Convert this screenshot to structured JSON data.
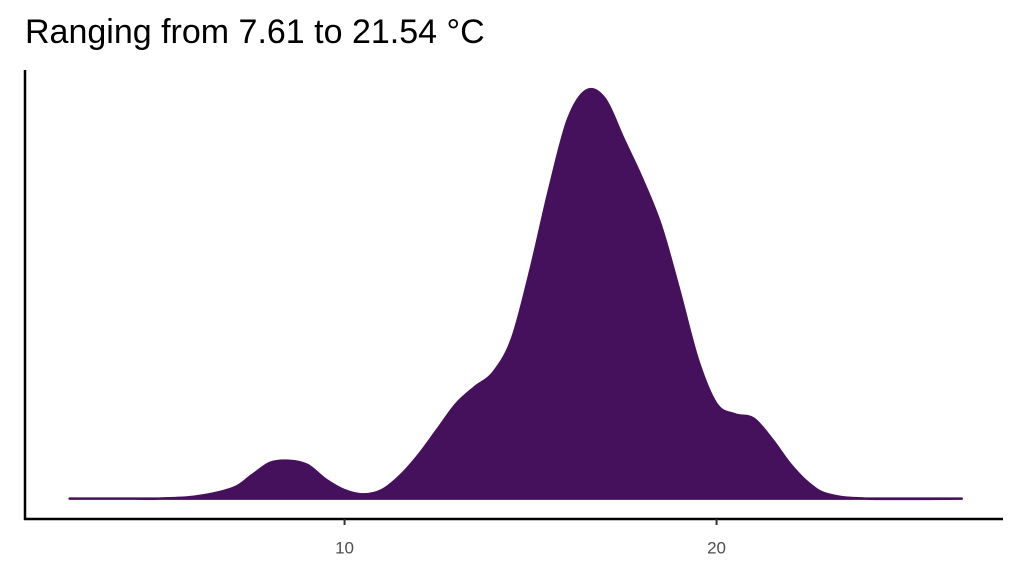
{
  "chart_data": {
    "type": "density",
    "title": "Ranging from 7.61 to 21.54 °C",
    "color": "#45105c",
    "x": [
      2.61,
      4,
      5,
      6,
      7,
      7.5,
      8,
      8.5,
      9,
      9.5,
      10,
      10.5,
      11,
      11.5,
      12,
      12.5,
      13,
      13.5,
      14,
      14.5,
      15,
      15.5,
      16,
      16.5,
      17,
      17.5,
      18,
      18.5,
      19,
      19.5,
      20,
      20.5,
      21,
      21.5,
      22,
      22.5,
      23,
      24,
      26.59
    ],
    "values": [
      0,
      0,
      0,
      0.001,
      0.005,
      0.011,
      0.017,
      0.018,
      0.016,
      0.009,
      0.004,
      0.002,
      0.004,
      0.011,
      0.021,
      0.033,
      0.045,
      0.053,
      0.06,
      0.076,
      0.109,
      0.147,
      0.18,
      0.194,
      0.19,
      0.171,
      0.152,
      0.13,
      0.099,
      0.066,
      0.045,
      0.04,
      0.038,
      0.028,
      0.016,
      0.007,
      0.002,
      0,
      0
    ],
    "xlim": [
      1.41,
      27.7
    ],
    "ylim": [
      -0.0097,
      0.2037
    ],
    "xticks": [
      10,
      20
    ]
  }
}
